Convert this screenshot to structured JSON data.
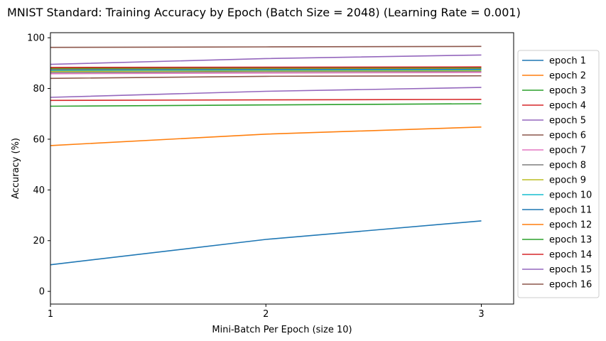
{
  "chart_data": {
    "type": "line",
    "title": "MNIST Standard: Training Accuracy by Epoch (Batch Size = 2048) (Learning Rate = 0.001)",
    "xlabel": "Mini-Batch Per Epoch (size 10)",
    "ylabel": "Accuracy (%)",
    "x": [
      1,
      2,
      3
    ],
    "xticks": [
      "1",
      "2",
      "3"
    ],
    "yticks": [
      "0",
      "20",
      "40",
      "60",
      "80",
      "100"
    ],
    "ylim": [
      -5,
      102
    ],
    "xlim": [
      1,
      3.15
    ],
    "legend_position": "outside-right",
    "series": [
      {
        "name": "epoch 1",
        "color": "#1f77b4",
        "values": [
          10.5,
          20.5,
          27.8
        ]
      },
      {
        "name": "epoch 2",
        "color": "#ff7f0e",
        "values": [
          57.5,
          62.0,
          64.8
        ]
      },
      {
        "name": "epoch 3",
        "color": "#2ca02c",
        "values": [
          73.0,
          73.5,
          74.0
        ]
      },
      {
        "name": "epoch 4",
        "color": "#d62728",
        "values": [
          75.3,
          75.5,
          75.7
        ]
      },
      {
        "name": "epoch 5",
        "color": "#9467bd",
        "values": [
          76.5,
          78.9,
          80.4
        ]
      },
      {
        "name": "epoch 6",
        "color": "#8c564b",
        "values": [
          84.0,
          84.8,
          85.0
        ]
      },
      {
        "name": "epoch 7",
        "color": "#e377c2",
        "values": [
          85.8,
          86.1,
          86.3
        ]
      },
      {
        "name": "epoch 8",
        "color": "#7f7f7f",
        "values": [
          86.3,
          86.6,
          86.8
        ]
      },
      {
        "name": "epoch 9",
        "color": "#bcbd22",
        "values": [
          86.8,
          87.0,
          87.1
        ]
      },
      {
        "name": "epoch 10",
        "color": "#17becf",
        "values": [
          87.2,
          87.3,
          87.4
        ]
      },
      {
        "name": "epoch 11",
        "color": "#1f77b4",
        "values": [
          87.5,
          87.6,
          87.7
        ]
      },
      {
        "name": "epoch 12",
        "color": "#ff7f0e",
        "values": [
          87.8,
          87.9,
          88.0
        ]
      },
      {
        "name": "epoch 13",
        "color": "#2ca02c",
        "values": [
          88.0,
          88.1,
          88.2
        ]
      },
      {
        "name": "epoch 14",
        "color": "#d62728",
        "values": [
          88.3,
          88.4,
          88.5
        ]
      },
      {
        "name": "epoch 15",
        "color": "#9467bd",
        "values": [
          89.5,
          91.8,
          93.2
        ]
      },
      {
        "name": "epoch 16",
        "color": "#8c564b",
        "values": [
          96.2,
          96.4,
          96.6
        ]
      }
    ]
  }
}
